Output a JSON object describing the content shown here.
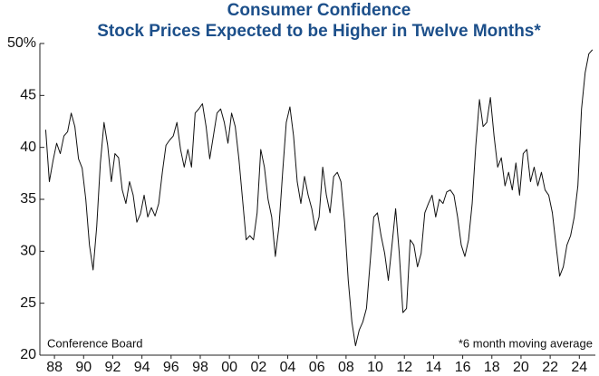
{
  "chart_data": {
    "type": "line",
    "title": "Consumer Confidence",
    "subtitle": "Stock Prices Expected to be Higher in Twelve Months*",
    "annotations": [
      "Conference Board",
      "*6 month moving average"
    ],
    "xlim": [
      1987.5,
      2025.6
    ],
    "ylim": [
      20,
      50
    ],
    "yticks": [
      20,
      25,
      30,
      35,
      40,
      45,
      {
        "value": 50,
        "label": "50%"
      }
    ],
    "xticks": [
      {
        "value": 1988.5,
        "label": "88"
      },
      {
        "value": 1990.5,
        "label": "90"
      },
      {
        "value": 1992.5,
        "label": "92"
      },
      {
        "value": 1994.5,
        "label": "94"
      },
      {
        "value": 1996.5,
        "label": "96"
      },
      {
        "value": 1998.5,
        "label": "98"
      },
      {
        "value": 2000.5,
        "label": "00"
      },
      {
        "value": 2002.5,
        "label": "02"
      },
      {
        "value": 2004.5,
        "label": "04"
      },
      {
        "value": 2006.5,
        "label": "06"
      },
      {
        "value": 2008.5,
        "label": "08"
      },
      {
        "value": 2010.5,
        "label": "10"
      },
      {
        "value": 2012.5,
        "label": "12"
      },
      {
        "value": 2014.5,
        "label": "14"
      },
      {
        "value": 2016.5,
        "label": "16"
      },
      {
        "value": 2018.5,
        "label": "18"
      },
      {
        "value": 2020.5,
        "label": "20"
      },
      {
        "value": 2022.5,
        "label": "22"
      },
      {
        "value": 2024.5,
        "label": "24"
      }
    ],
    "grid": false,
    "series": [
      {
        "name": "Stock Prices Expected to be Higher in Twelve Months",
        "color": "#111111",
        "x": [
          1987.9,
          1988.15,
          1988.4,
          1988.65,
          1988.9,
          1989.15,
          1989.4,
          1989.65,
          1989.9,
          1990.15,
          1990.4,
          1990.65,
          1990.9,
          1991.15,
          1991.4,
          1991.65,
          1991.9,
          1992.15,
          1992.4,
          1992.65,
          1992.9,
          1993.15,
          1993.4,
          1993.65,
          1993.9,
          1994.15,
          1994.4,
          1994.65,
          1994.9,
          1995.15,
          1995.4,
          1995.65,
          1995.9,
          1996.15,
          1996.4,
          1996.65,
          1996.9,
          1997.15,
          1997.4,
          1997.65,
          1997.9,
          1998.15,
          1998.4,
          1998.65,
          1998.9,
          1999.15,
          1999.4,
          1999.65,
          1999.9,
          2000.15,
          2000.4,
          2000.65,
          2000.9,
          2001.15,
          2001.4,
          2001.65,
          2001.9,
          2002.15,
          2002.4,
          2002.65,
          2002.9,
          2003.15,
          2003.4,
          2003.65,
          2003.9,
          2004.15,
          2004.4,
          2004.65,
          2004.9,
          2005.15,
          2005.4,
          2005.65,
          2005.9,
          2006.15,
          2006.4,
          2006.65,
          2006.9,
          2007.15,
          2007.4,
          2007.65,
          2007.9,
          2008.15,
          2008.4,
          2008.65,
          2008.9,
          2009.15,
          2009.4,
          2009.65,
          2009.9,
          2010.15,
          2010.4,
          2010.65,
          2010.9,
          2011.15,
          2011.4,
          2011.65,
          2011.9,
          2012.15,
          2012.4,
          2012.65,
          2012.9,
          2013.15,
          2013.4,
          2013.65,
          2013.9,
          2014.15,
          2014.4,
          2014.65,
          2014.9,
          2015.15,
          2015.4,
          2015.65,
          2015.9,
          2016.15,
          2016.4,
          2016.65,
          2016.9,
          2017.15,
          2017.4,
          2017.65,
          2017.9,
          2018.15,
          2018.4,
          2018.65,
          2018.9,
          2019.15,
          2019.4,
          2019.65,
          2019.9,
          2020.15,
          2020.4,
          2020.65,
          2020.9,
          2021.15,
          2021.4,
          2021.65,
          2021.9,
          2022.15,
          2022.4,
          2022.65,
          2022.9,
          2023.15,
          2023.4,
          2023.65,
          2023.9,
          2024.15,
          2024.4,
          2024.65,
          2024.9,
          2025.15,
          2025.4
        ],
        "values": [
          41.7,
          36.7,
          38.7,
          40.4,
          39.4,
          41.1,
          41.5,
          43.3,
          42.0,
          38.9,
          38.0,
          35.0,
          30.6,
          28.2,
          32.4,
          38.5,
          42.4,
          40.2,
          36.7,
          39.4,
          39.0,
          35.9,
          34.6,
          36.7,
          35.4,
          32.8,
          33.6,
          35.4,
          33.3,
          34.2,
          33.4,
          34.6,
          37.6,
          40.2,
          40.7,
          41.1,
          42.4,
          39.8,
          38.1,
          39.8,
          38.1,
          43.3,
          43.7,
          44.2,
          42,
          38.9,
          41.1,
          43.3,
          43.7,
          42.4,
          40.4,
          43.3,
          42,
          38.9,
          35.0,
          31.1,
          31.5,
          31.1,
          33.7,
          39.8,
          38.1,
          35.0,
          33.3,
          29.5,
          32.4,
          37.6,
          42.4,
          43.9,
          41.1,
          36.7,
          34.6,
          37.2,
          35.4,
          34.1,
          32,
          33.3,
          38.1,
          35.4,
          33.7,
          37.2,
          37.6,
          36.7,
          32.8,
          27.2,
          23.2,
          20.9,
          22.4,
          23.2,
          24.5,
          28.9,
          33.3,
          33.7,
          31.5,
          29.8,
          27.2,
          30.6,
          34.1,
          29.8,
          24.1,
          24.5,
          31.1,
          30.6,
          28.5,
          29.8,
          33.7,
          34.6,
          35.4,
          33.3,
          35.0,
          34.6,
          35.7,
          35.9,
          35.4,
          33.3,
          30.6,
          29.5,
          31.1,
          34.6,
          40.2,
          44.6,
          42,
          42.4,
          44.8,
          41.1,
          38.1,
          39,
          36.3,
          37.6,
          35.9,
          38.5,
          35.4,
          39.4,
          39.8,
          36.7,
          38.1,
          36.3,
          37.6,
          35.9,
          35.4,
          33.7,
          30.6,
          27.6,
          28.5,
          30.6,
          31.5,
          33.3,
          36.3,
          43.7,
          47.2,
          49,
          49.4
        ]
      }
    ]
  }
}
